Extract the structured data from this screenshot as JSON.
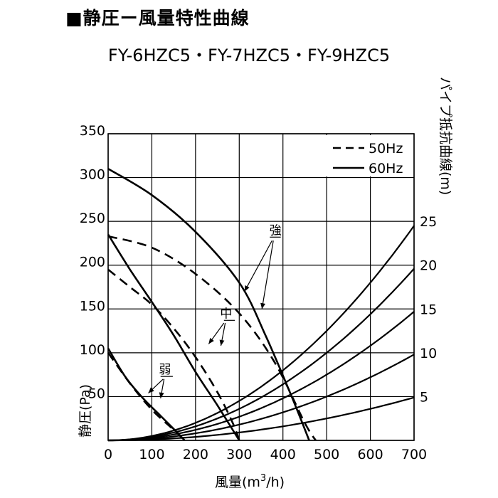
{
  "title": "■静圧ー風量特性曲線",
  "models": "FY-6HZC5・FY-7HZC5・FY-9HZC5",
  "chart_data": {
    "type": "line",
    "xlabel": "風量(m³/h)",
    "xlabel_parts": {
      "prefix": "風量(m",
      "sup": "3",
      "suffix": "/h)"
    },
    "ylabel": "静圧(Pa)",
    "ylabel_right": "パイプ抵抗曲線(m)",
    "xlim": [
      0,
      700
    ],
    "ylim": [
      0,
      350
    ],
    "x_ticks": [
      "0",
      "100",
      "200",
      "300",
      "400",
      "500",
      "600",
      "700"
    ],
    "y_ticks": [
      "350",
      "300",
      "250",
      "200",
      "150",
      "100",
      "50"
    ],
    "y_ticks_right": [
      "25",
      "20",
      "15",
      "10",
      "5"
    ],
    "grid": true,
    "legend": {
      "position": "top-right",
      "entries": [
        {
          "label": "50Hz",
          "style": "dashed"
        },
        {
          "label": "60Hz",
          "style": "solid"
        }
      ]
    },
    "annotations": [
      {
        "text": "強",
        "x": 383,
        "y": 232
      },
      {
        "text": "中",
        "x": 270,
        "y": 137
      },
      {
        "text": "弱",
        "x": 130,
        "y": 73
      }
    ],
    "series": [
      {
        "group": "強",
        "freq": "50Hz",
        "style": "dashed",
        "points": [
          [
            0,
            233
          ],
          [
            100,
            220
          ],
          [
            200,
            190
          ],
          [
            300,
            145
          ],
          [
            380,
            90
          ],
          [
            450,
            20
          ],
          [
            475,
            0
          ]
        ]
      },
      {
        "group": "強",
        "freq": "60Hz",
        "style": "solid",
        "points": [
          [
            0,
            310
          ],
          [
            100,
            280
          ],
          [
            200,
            238
          ],
          [
            300,
            180
          ],
          [
            360,
            120
          ],
          [
            420,
            50
          ],
          [
            460,
            0
          ]
        ]
      },
      {
        "group": "中",
        "freq": "50Hz",
        "style": "dashed",
        "points": [
          [
            0,
            195
          ],
          [
            50,
            175
          ],
          [
            100,
            155
          ],
          [
            150,
            128
          ],
          [
            200,
            95
          ],
          [
            250,
            55
          ],
          [
            285,
            20
          ],
          [
            300,
            0
          ]
        ]
      },
      {
        "group": "中",
        "freq": "60Hz",
        "style": "solid",
        "points": [
          [
            0,
            235
          ],
          [
            50,
            195
          ],
          [
            100,
            158
          ],
          [
            150,
            120
          ],
          [
            200,
            78
          ],
          [
            250,
            40
          ],
          [
            300,
            0
          ]
        ]
      },
      {
        "group": "弱",
        "freq": "50Hz",
        "style": "dashed",
        "points": [
          [
            0,
            100
          ],
          [
            50,
            65
          ],
          [
            100,
            35
          ],
          [
            150,
            12
          ],
          [
            175,
            0
          ]
        ]
      },
      {
        "group": "弱",
        "freq": "60Hz",
        "style": "solid",
        "points": [
          [
            0,
            105
          ],
          [
            40,
            72
          ],
          [
            80,
            48
          ],
          [
            120,
            28
          ],
          [
            160,
            8
          ],
          [
            175,
            0
          ]
        ]
      },
      {
        "group": "パイプ抵抗曲線",
        "length_m": 25,
        "curve": "quadratic",
        "points": [
          [
            0,
            0
          ],
          [
            700,
            245
          ]
        ]
      },
      {
        "group": "パイプ抵抗曲線",
        "length_m": 20,
        "curve": "quadratic",
        "points": [
          [
            0,
            0
          ],
          [
            700,
            196
          ]
        ]
      },
      {
        "group": "パイプ抵抗曲線",
        "length_m": 15,
        "curve": "quadratic",
        "points": [
          [
            0,
            0
          ],
          [
            700,
            147
          ]
        ]
      },
      {
        "group": "パイプ抵抗曲線",
        "length_m": 10,
        "curve": "quadratic",
        "points": [
          [
            0,
            0
          ],
          [
            700,
            98
          ]
        ]
      },
      {
        "group": "パイプ抵抗曲線",
        "length_m": 5,
        "curve": "quadratic",
        "points": [
          [
            0,
            0
          ],
          [
            700,
            49
          ]
        ]
      }
    ]
  }
}
